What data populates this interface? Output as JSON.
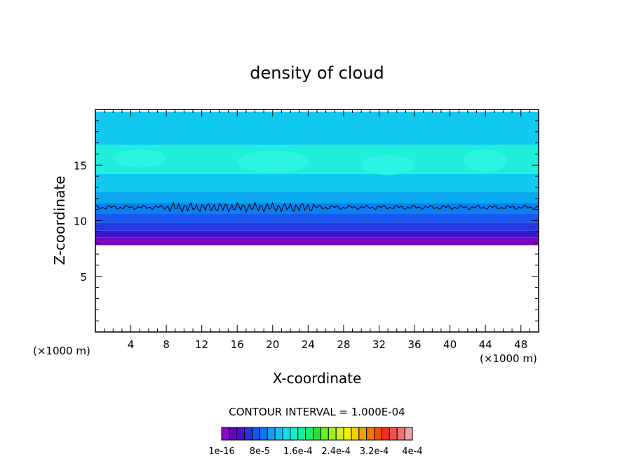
{
  "chart_data": {
    "type": "heatmap",
    "title": "density of cloud",
    "xlabel": "X-coordinate",
    "ylabel": "Z-coordinate",
    "x_unit_left": "(×1000 m)",
    "x_unit_right": "(×1000 m)",
    "xlim": [
      0,
      50
    ],
    "ylim": [
      0,
      20
    ],
    "x_ticks": [
      4,
      8,
      12,
      16,
      20,
      24,
      28,
      32,
      36,
      40,
      44,
      48
    ],
    "y_ticks": [
      5,
      10,
      15
    ],
    "x_tick_labels": [
      "4",
      "8",
      "12",
      "16",
      "20",
      "24",
      "28",
      "32",
      "36",
      "40",
      "44",
      "48"
    ],
    "y_tick_labels": [
      "5",
      "10",
      "15"
    ],
    "cloud_base_z": 7.8,
    "cloud_top_z": 19.8,
    "contour_line_z": 11.2,
    "contour_interval_text": "CONTOUR INTERVAL = 1.000E-04",
    "colorbar": {
      "colors": [
        "#8a0ac8",
        "#6a00c0",
        "#4a10d0",
        "#2a30e0",
        "#1a50f0",
        "#0a78f0",
        "#10a0f0",
        "#10c4f0",
        "#10e0f0",
        "#10f0d0",
        "#10f0a0",
        "#20f070",
        "#30e030",
        "#60f020",
        "#a0f020",
        "#d0f020",
        "#f0f000",
        "#f0d000",
        "#f0a000",
        "#f07800",
        "#f05000",
        "#f03020",
        "#f05050",
        "#f07070",
        "#f0a0a0"
      ],
      "labels": [
        "1e-16",
        "8e-5",
        "1.6e-4",
        "2.4e-4",
        "3.2e-4",
        "4e-4"
      ]
    }
  }
}
